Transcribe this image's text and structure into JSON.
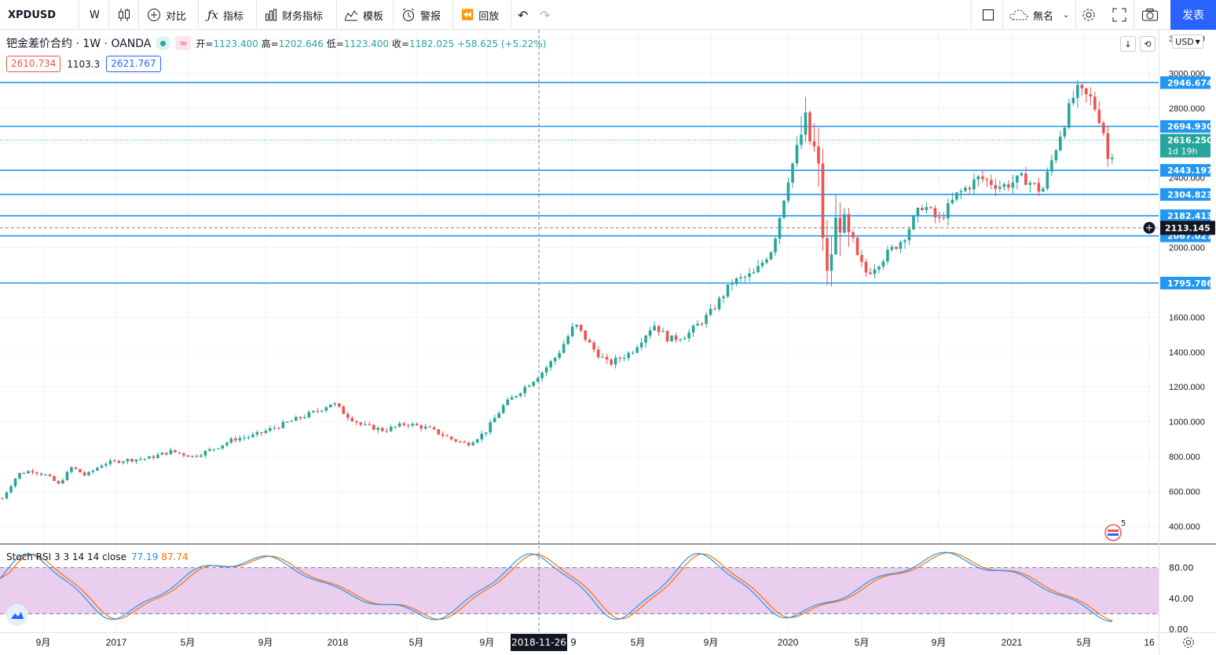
{
  "toolbar": {
    "symbol": "XPDUSD",
    "interval": "W",
    "compare_label": "对比",
    "indicators_label": "指标",
    "financials_label": "财务指标",
    "templates_label": "模板",
    "alert_label": "警报",
    "replay_label": "回放",
    "layout_name": "無名",
    "publish_label": "发表"
  },
  "legend": {
    "title": "钯金差价合约 · 1W · OANDA",
    "open_label": "开",
    "open": "1123.400",
    "high_label": "高",
    "high": "1202.646",
    "low_label": "低",
    "low": "1123.400",
    "close_label": "收",
    "close": "1182.025",
    "change": "+58.625 (+5.22%)",
    "sell_price": "2610.734",
    "spread": "1103.3",
    "buy_price": "2621.767"
  },
  "currency": "USD",
  "price_axis": {
    "ticks": [
      "400.000",
      "600.000",
      "800.000",
      "1000.000",
      "1200.000",
      "1400.000",
      "1600.000",
      "1800.000",
      "2000.000",
      "2200.000",
      "2400.000",
      "2600.000",
      "2800.000",
      "3000.000",
      "3200.000"
    ],
    "range": [
      300,
      3250
    ]
  },
  "horizontal_lines": [
    {
      "value": 2946.674,
      "label": "2946.674"
    },
    {
      "value": 2694.93,
      "label": "2694.930"
    },
    {
      "value": 2443.197,
      "label": "2443.197"
    },
    {
      "value": 2304.823,
      "label": "2304.823"
    },
    {
      "value": 2182.413,
      "label": "2182.413"
    },
    {
      "value": 2067.027,
      "label": "2067.027"
    },
    {
      "value": 1795.786,
      "label": "1795.786"
    }
  ],
  "current_price": {
    "value": 2616.25,
    "label": "2616.250",
    "countdown": "1d 19h"
  },
  "crosshair_price": {
    "value": 2113.145,
    "label": "2113.145"
  },
  "crosshair_date": "2018-11-26",
  "time_axis": [
    "9月",
    "2017",
    "5月",
    "9月",
    "2018",
    "5月",
    "9月",
    "9",
    "5月",
    "9月",
    "2020",
    "5月",
    "9月",
    "2021",
    "5月",
    "16"
  ],
  "events_badge": "5",
  "stoch": {
    "title": "Stoch RSI 3 3 14 14 close",
    "k": "77.19",
    "d": "87.74",
    "ticks": [
      "0.00",
      "40.00",
      "80.00"
    ],
    "band": [
      20,
      80
    ],
    "k_color": "#2196f3",
    "d_color": "#ff6d00"
  },
  "colors": {
    "up": "#26a69a",
    "down": "#ef5350",
    "hline": "#2196f3",
    "band": "#e1bee7"
  },
  "chart_data": {
    "type": "candlestick",
    "title": "钯金差价合约 · 1W · OANDA",
    "ylim": [
      300,
      3250
    ],
    "price_path": [
      [
        2016.55,
        560
      ],
      [
        2016.62,
        700
      ],
      [
        2016.68,
        720
      ],
      [
        2016.75,
        690
      ],
      [
        2016.8,
        640
      ],
      [
        2016.86,
        740
      ],
      [
        2016.92,
        690
      ],
      [
        2017.0,
        760
      ],
      [
        2017.1,
        780
      ],
      [
        2017.2,
        790
      ],
      [
        2017.3,
        830
      ],
      [
        2017.4,
        800
      ],
      [
        2017.5,
        850
      ],
      [
        2017.58,
        900
      ],
      [
        2017.67,
        920
      ],
      [
        2017.75,
        960
      ],
      [
        2017.85,
        1010
      ],
      [
        2017.95,
        1060
      ],
      [
        2018.02,
        1110
      ],
      [
        2018.08,
        1040
      ],
      [
        2018.15,
        980
      ],
      [
        2018.25,
        950
      ],
      [
        2018.35,
        990
      ],
      [
        2018.45,
        960
      ],
      [
        2018.55,
        900
      ],
      [
        2018.62,
        870
      ],
      [
        2018.7,
        940
      ],
      [
        2018.78,
        1090
      ],
      [
        2018.86,
        1180
      ],
      [
        2018.95,
        1280
      ],
      [
        2019.02,
        1380
      ],
      [
        2019.1,
        1560
      ],
      [
        2019.18,
        1420
      ],
      [
        2019.25,
        1330
      ],
      [
        2019.35,
        1400
      ],
      [
        2019.45,
        1560
      ],
      [
        2019.52,
        1470
      ],
      [
        2019.6,
        1500
      ],
      [
        2019.7,
        1620
      ],
      [
        2019.8,
        1800
      ],
      [
        2019.9,
        1850
      ],
      [
        2019.98,
        2000
      ],
      [
        2020.05,
        2400
      ],
      [
        2020.12,
        2700
      ],
      [
        2020.18,
        2500
      ],
      [
        2020.22,
        1800
      ],
      [
        2020.27,
        2200
      ],
      [
        2020.33,
        2000
      ],
      [
        2020.4,
        1850
      ],
      [
        2020.48,
        1950
      ],
      [
        2020.56,
        2050
      ],
      [
        2020.65,
        2250
      ],
      [
        2020.72,
        2150
      ],
      [
        2020.8,
        2300
      ],
      [
        2020.9,
        2400
      ],
      [
        2021.0,
        2350
      ],
      [
        2021.1,
        2400
      ],
      [
        2021.18,
        2320
      ],
      [
        2021.26,
        2650
      ],
      [
        2021.33,
        2900
      ],
      [
        2021.4,
        2850
      ],
      [
        2021.45,
        2700
      ],
      [
        2021.48,
        2450
      ],
      [
        2021.5,
        2616
      ]
    ]
  }
}
